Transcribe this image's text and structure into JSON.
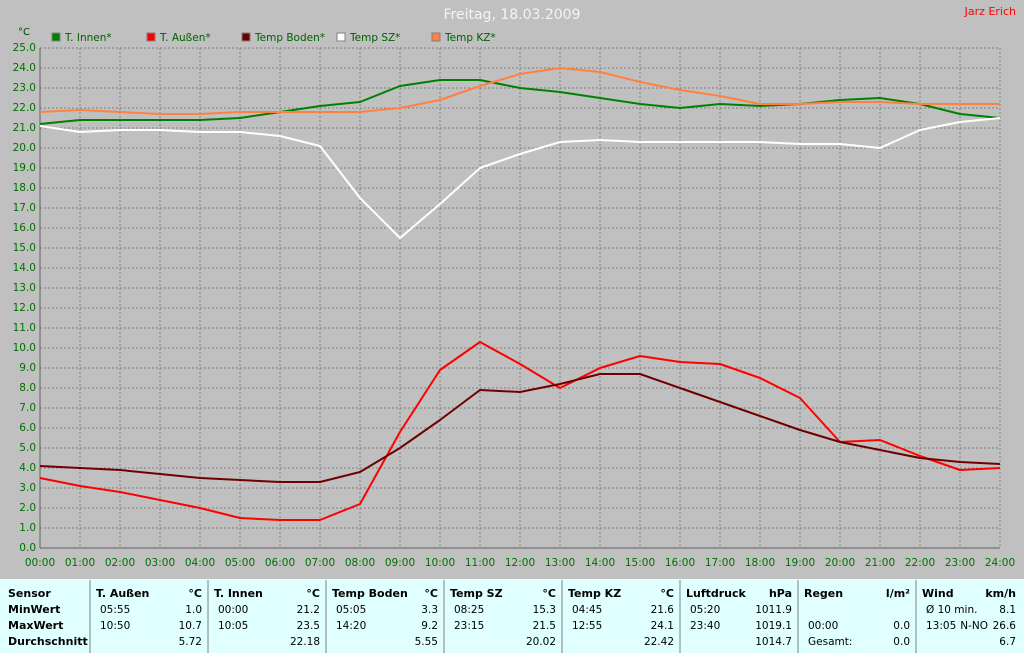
{
  "chart_data": {
    "type": "line",
    "title": "Freitag, 18.03.2009",
    "author": "Jarz Erich",
    "y_label": "°C",
    "x": [
      0,
      1,
      2,
      3,
      4,
      5,
      6,
      7,
      8,
      9,
      10,
      11,
      12,
      13,
      14,
      15,
      16,
      17,
      18,
      19,
      20,
      21,
      22,
      23,
      24
    ],
    "xlim": [
      0,
      24
    ],
    "xticks": [
      {
        "value": 0,
        "label": "00:00"
      },
      {
        "value": 1,
        "label": "01:00"
      },
      {
        "value": 2,
        "label": "02:00"
      },
      {
        "value": 3,
        "label": "03:00"
      },
      {
        "value": 4,
        "label": "04:00"
      },
      {
        "value": 5,
        "label": "05:00"
      },
      {
        "value": 6,
        "label": "06:00"
      },
      {
        "value": 7,
        "label": "07:00"
      },
      {
        "value": 8,
        "label": "08:00"
      },
      {
        "value": 9,
        "label": "09:00"
      },
      {
        "value": 10,
        "label": "10:00"
      },
      {
        "value": 11,
        "label": "11:00"
      },
      {
        "value": 12,
        "label": "12:00"
      },
      {
        "value": 13,
        "label": "13:00"
      },
      {
        "value": 14,
        "label": "14:00"
      },
      {
        "value": 15,
        "label": "15:00"
      },
      {
        "value": 16,
        "label": "16:00"
      },
      {
        "value": 17,
        "label": "17:00"
      },
      {
        "value": 18,
        "label": "18:00"
      },
      {
        "value": 19,
        "label": "19:00"
      },
      {
        "value": 20,
        "label": "20:00"
      },
      {
        "value": 21,
        "label": "21:00"
      },
      {
        "value": 22,
        "label": "22:00"
      },
      {
        "value": 23,
        "label": "23:00"
      },
      {
        "value": 24,
        "label": "24:00"
      }
    ],
    "ylim": [
      0,
      25
    ],
    "yticks": [
      {
        "value": 0,
        "label": "0.0"
      },
      {
        "value": 1,
        "label": "1.0"
      },
      {
        "value": 2,
        "label": "2.0"
      },
      {
        "value": 3,
        "label": "3.0"
      },
      {
        "value": 4,
        "label": "4.0"
      },
      {
        "value": 5,
        "label": "5.0"
      },
      {
        "value": 6,
        "label": "6.0"
      },
      {
        "value": 7,
        "label": "7.0"
      },
      {
        "value": 8,
        "label": "8.0"
      },
      {
        "value": 9,
        "label": "9.0"
      },
      {
        "value": 10,
        "label": "10.0"
      },
      {
        "value": 11,
        "label": "11.0"
      },
      {
        "value": 12,
        "label": "12.0"
      },
      {
        "value": 13,
        "label": "13.0"
      },
      {
        "value": 14,
        "label": "14.0"
      },
      {
        "value": 15,
        "label": "15.0"
      },
      {
        "value": 16,
        "label": "16.0"
      },
      {
        "value": 17,
        "label": "17.0"
      },
      {
        "value": 18,
        "label": "18.0"
      },
      {
        "value": 19,
        "label": "19.0"
      },
      {
        "value": 20,
        "label": "20.0"
      },
      {
        "value": 21,
        "label": "21.0"
      },
      {
        "value": 22,
        "label": "22.0"
      },
      {
        "value": 23,
        "label": "23.0"
      },
      {
        "value": 24,
        "label": "24.0"
      },
      {
        "value": 25,
        "label": "25.0"
      }
    ],
    "grid": true,
    "series": [
      {
        "name": "T. Innen*",
        "color": "#008000",
        "values": [
          21.2,
          21.4,
          21.4,
          21.4,
          21.4,
          21.5,
          21.8,
          22.1,
          22.3,
          23.1,
          23.4,
          23.4,
          23.0,
          22.8,
          22.5,
          22.2,
          22.0,
          22.2,
          22.1,
          22.2,
          22.4,
          22.5,
          22.2,
          21.7,
          21.5
        ]
      },
      {
        "name": "T. Außen*",
        "color": "#ff0000",
        "values": [
          3.5,
          3.1,
          2.8,
          2.4,
          2.0,
          1.5,
          1.4,
          1.4,
          2.2,
          5.8,
          8.9,
          10.3,
          9.2,
          8.0,
          9.0,
          9.6,
          9.3,
          9.2,
          8.5,
          7.5,
          5.3,
          5.4,
          4.6,
          3.9,
          4.0
        ]
      },
      {
        "name": "Temp Boden*",
        "color": "#700000",
        "values": [
          4.1,
          4.0,
          3.9,
          3.7,
          3.5,
          3.4,
          3.3,
          3.3,
          3.8,
          5.0,
          6.4,
          7.9,
          7.8,
          8.2,
          8.7,
          8.7,
          8.0,
          7.3,
          6.6,
          5.9,
          5.3,
          4.9,
          4.5,
          4.3,
          4.2
        ]
      },
      {
        "name": "Temp SZ*",
        "color": "#ffffff",
        "values": [
          21.1,
          20.8,
          20.9,
          20.9,
          20.8,
          20.8,
          20.6,
          20.1,
          17.5,
          15.5,
          17.2,
          19.0,
          19.7,
          20.3,
          20.4,
          20.3,
          20.3,
          20.3,
          20.3,
          20.2,
          20.2,
          20.0,
          20.9,
          21.3,
          21.5
        ]
      },
      {
        "name": "Temp KZ*",
        "color": "#ff8040",
        "values": [
          21.8,
          21.9,
          21.8,
          21.7,
          21.7,
          21.8,
          21.8,
          21.8,
          21.8,
          22.0,
          22.4,
          23.1,
          23.7,
          24.0,
          23.8,
          23.3,
          22.9,
          22.6,
          22.2,
          22.2,
          22.3,
          22.3,
          22.2,
          22.2,
          22.2
        ]
      }
    ]
  },
  "table": {
    "row_labels": [
      "Sensor",
      "MinWert",
      "MaxWert",
      "Durchschnitt"
    ],
    "groups": [
      {
        "name": "T. Außen",
        "unit": "°C",
        "rows": [
          [
            "05:55",
            "1.0"
          ],
          [
            "10:50",
            "10.7"
          ],
          [
            null,
            "5.72"
          ]
        ]
      },
      {
        "name": "T. Innen",
        "unit": "°C",
        "rows": [
          [
            "00:00",
            "21.2"
          ],
          [
            "10:05",
            "23.5"
          ],
          [
            null,
            "22.18"
          ]
        ]
      },
      {
        "name": "Temp Boden",
        "unit": "°C",
        "rows": [
          [
            "05:05",
            "3.3"
          ],
          [
            "14:20",
            "9.2"
          ],
          [
            null,
            "5.55"
          ]
        ]
      },
      {
        "name": "Temp SZ",
        "unit": "°C",
        "rows": [
          [
            "08:25",
            "15.3"
          ],
          [
            "23:15",
            "21.5"
          ],
          [
            null,
            "20.02"
          ]
        ]
      },
      {
        "name": "Temp KZ",
        "unit": "°C",
        "rows": [
          [
            "04:45",
            "21.6"
          ],
          [
            "12:55",
            "24.1"
          ],
          [
            null,
            "22.42"
          ]
        ]
      },
      {
        "name": "Luftdruck",
        "unit": "hPa",
        "rows": [
          [
            "05:20",
            "1011.9"
          ],
          [
            "23:40",
            "1019.1"
          ],
          [
            null,
            "1014.7"
          ]
        ]
      },
      {
        "name": "Regen",
        "unit": "l/m²",
        "rows": [
          [
            null,
            null
          ],
          [
            "00:00",
            "0.0"
          ],
          [
            "Gesamt:",
            "0.0"
          ]
        ]
      },
      {
        "name": "Wind",
        "unit": "km/h",
        "rows": [
          [
            "Ø 10 min.",
            "8.1"
          ],
          [
            "13:05",
            "N-NO",
            "26.6"
          ],
          [
            null,
            "6.7"
          ]
        ]
      }
    ]
  }
}
